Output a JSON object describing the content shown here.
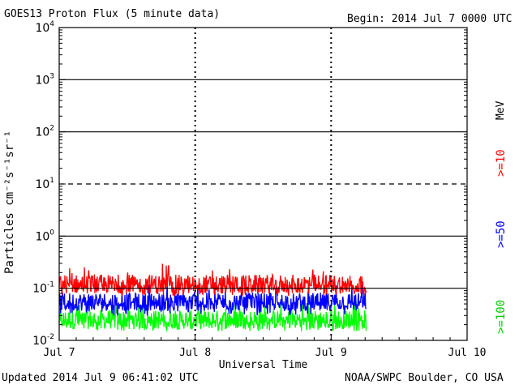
{
  "header": {
    "title": "GOES13 Proton Flux (5 minute data)",
    "begin": "Begin: 2014 Jul 7 0000 UTC"
  },
  "footer": {
    "updated": "Updated 2014 Jul  9 06:41:02 UTC",
    "credit": "NOAA/SWPC Boulder, CO USA"
  },
  "legend": {
    "unit_label": "MeV",
    "items": [
      {
        "label": ">=10",
        "color": "#ff0000"
      },
      {
        "label": ">=50",
        "color": "#0000ff"
      },
      {
        "label": ">=100",
        "color": "#00ff00"
      }
    ]
  },
  "chart_data": {
    "type": "line",
    "title": "GOES13 Proton Flux (5 minute data)",
    "xlabel": "Universal Time",
    "ylabel": "Particles cm⁻²s⁻¹sr⁻¹",
    "x_ticks": [
      "Jul 7",
      "Jul 8",
      "Jul 9",
      "Jul 10"
    ],
    "xlim_days": [
      0,
      3
    ],
    "y_scale": "log",
    "ylim": [
      0.01,
      10000
    ],
    "y_tick_base": "10",
    "y_tick_exponents": [
      "4",
      "3",
      "2",
      "1",
      "0",
      "-1",
      "-2"
    ],
    "reference_lines": [
      {
        "y": 10,
        "style": "dashed"
      },
      {
        "y": 0.1,
        "style": "solid"
      },
      {
        "y": 1,
        "style": "solid"
      },
      {
        "y": 100,
        "style": "solid"
      },
      {
        "y": 1000,
        "style": "solid"
      }
    ],
    "series": [
      {
        "name": ">=10 MeV",
        "color": "#ff0000",
        "typical": 0.12,
        "min": 0.07,
        "max": 0.32
      },
      {
        "name": ">=50 MeV",
        "color": "#0000ff",
        "typical": 0.055,
        "min": 0.03,
        "max": 0.13
      },
      {
        "name": ">=100 MeV",
        "color": "#00ff00",
        "typical": 0.025,
        "min": 0.015,
        "max": 0.07
      }
    ],
    "data_end_day": 2.26
  }
}
